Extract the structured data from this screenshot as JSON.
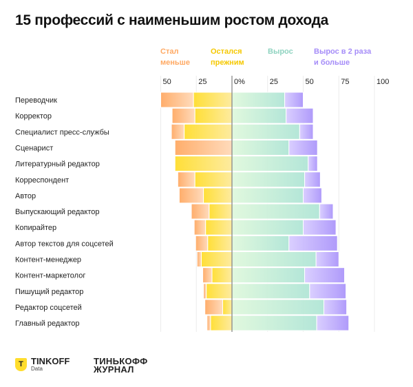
{
  "chart_data": {
    "type": "bar",
    "stacked": "diverging",
    "title": "15 профессий с наименьшим ростом дохода",
    "legend_placement": "top",
    "series": [
      {
        "name": "Стал меньше",
        "color": "#ffa963",
        "side": "left"
      },
      {
        "name": "Остался прежним",
        "color": "#ffdd2d",
        "side": "left"
      },
      {
        "name": "Вырос",
        "color": "#8fd9c4",
        "side": "right"
      },
      {
        "name": "Вырос в 2 раза и больше",
        "color": "#a58cf8",
        "side": "right"
      }
    ],
    "legend_lines": [
      [
        "Стал",
        "меньше"
      ],
      [
        "Остался",
        "прежним"
      ],
      [
        "Вырос",
        ""
      ],
      [
        "Вырос в 2 раза",
        "и больше"
      ]
    ],
    "x_ticks": [
      "50",
      "25",
      "0%",
      "25",
      "50",
      "75",
      "100"
    ],
    "x_tick_values": [
      -50,
      -25,
      0,
      25,
      50,
      75,
      100
    ],
    "xlim": [
      -50,
      100
    ],
    "grid": true,
    "categories": [
      "Переводчик",
      "Корректор",
      "Специалист пресс-службы",
      "Сценарист",
      "Литературный редактор",
      "Корреспондент",
      "Автор",
      "Выпускающий редактор",
      "Копирайтер",
      "Автор текстов для соцсетей",
      "Контент-менеджер",
      "Контент-маркетолог",
      "Пишущий редактор",
      "Редактор соцсетей",
      "Главный редактор"
    ],
    "values": {
      "Стал меньше": [
        23,
        16,
        9,
        40,
        0,
        12,
        17,
        12.5,
        8,
        8.5,
        3,
        6.5,
        2,
        12.5,
        2.5
      ],
      "Остался прежним": [
        27,
        26,
        33.5,
        0,
        40,
        26,
        20,
        16,
        18.5,
        17,
        21.5,
        14,
        18,
        6.5,
        15
      ],
      "Вырос": [
        37,
        38,
        47.5,
        40,
        53.5,
        51,
        50,
        61.5,
        50,
        40,
        59,
        51,
        54.5,
        64.5,
        59.5
      ],
      "Вырос в 2 раза и больше": [
        13,
        19,
        9.5,
        20,
        6.5,
        11,
        13,
        9.5,
        23,
        34,
        16,
        28,
        25.5,
        16,
        22.5
      ]
    }
  },
  "footer": {
    "logo1_main": "TINKOFF",
    "logo1_sub": "Data",
    "logo1_mark": "T",
    "logo2_line1": "ТИНЬКОФФ",
    "logo2_line2": "ЖУРНАЛ"
  }
}
